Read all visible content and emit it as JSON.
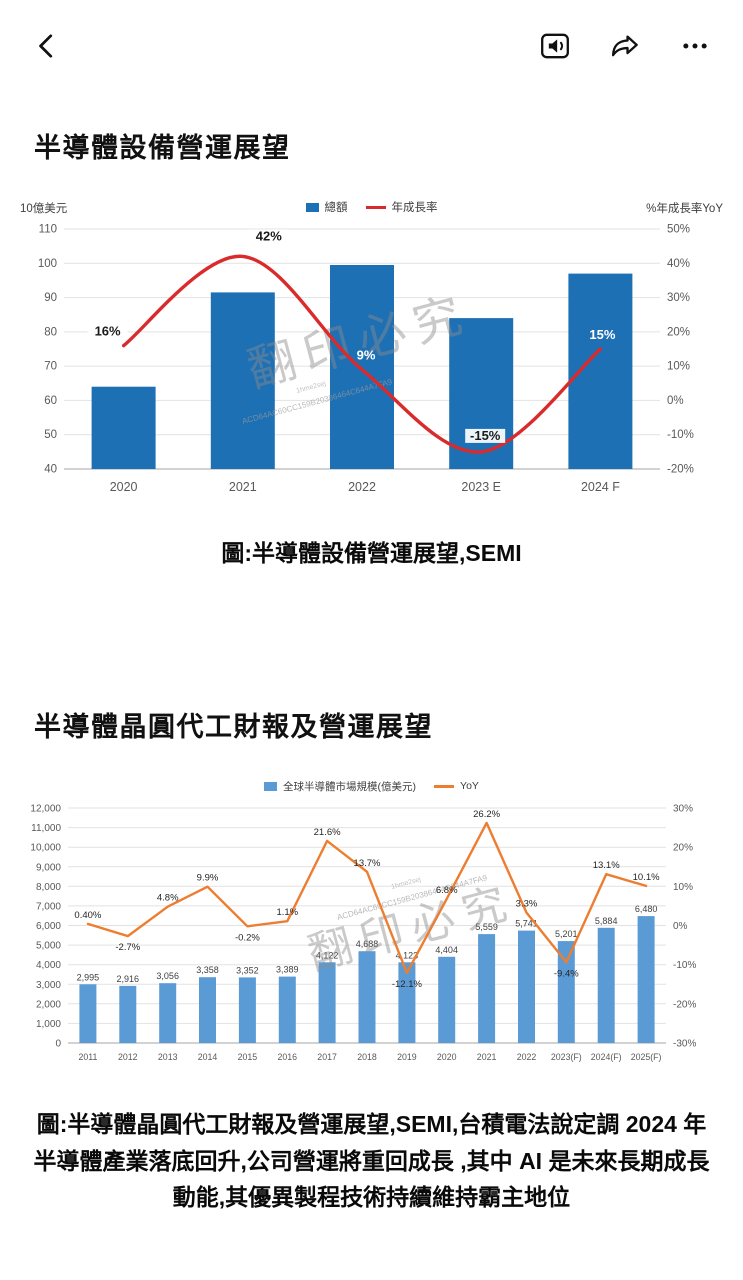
{
  "nav": {
    "icons": {
      "back": "chevron-left",
      "listen": "speaker-read-aloud",
      "share": "share-arrow",
      "more": "ellipsis"
    }
  },
  "article": {
    "heading1": "半導體設備營運展望",
    "caption1": "圖:半導體設備營運展望,SEMI",
    "heading2": "半導體晶圓代工財報及營運展望",
    "caption2": "圖:半導體晶圓代工財報及營運展望,SEMI,台積電法說定調 2024 年半導體產業落底回升,公司營運將重回成長 ,其中 AI 是未來長期成長動能,其優異製程技術持續維持霸主地位"
  },
  "watermark": {
    "main": "翻印必究",
    "code": "ACD64AC60CC159B20386464C644A7FA9",
    "code_small": "1hme2sej"
  },
  "chart_data": [
    {
      "type": "bar+line",
      "title": "半導體設備營運展望",
      "unit_left": "10億美元",
      "unit_right": "%年成長率YoY",
      "legend": [
        {
          "label": "總額",
          "color": "#1E70B5",
          "swatch": "bar"
        },
        {
          "label": "年成長率",
          "color": "#D92B2B",
          "swatch": "line"
        }
      ],
      "categories": [
        "2020",
        "2021",
        "2022",
        "2023 E",
        "2024 F"
      ],
      "bar_values": [
        64,
        91.5,
        99.5,
        84,
        97
      ],
      "line_values": [
        16,
        42,
        9,
        -15,
        15
      ],
      "line_labels": [
        "16%",
        "42%",
        "9%",
        "-15%",
        "15%"
      ],
      "ylim_left": [
        40,
        110
      ],
      "yticks_left": [
        "110",
        "100",
        "90",
        "80",
        "70",
        "60",
        "50",
        "40"
      ],
      "ylim_right": [
        -20,
        50
      ],
      "yticks_right": [
        "50%",
        "40%",
        "30%",
        "20%",
        "10%",
        "0%",
        "-10%",
        "-20%"
      ],
      "grid": true,
      "legend_position": "top"
    },
    {
      "type": "bar+line",
      "title": "半導體晶圓代工財報及營運展望",
      "legend": [
        {
          "label": "全球半導體市場規模(億美元)",
          "color": "#5B9BD5",
          "swatch": "bar"
        },
        {
          "label": "YoY",
          "color": "#ED7D31",
          "swatch": "line"
        }
      ],
      "categories": [
        "2011",
        "2012",
        "2013",
        "2014",
        "2015",
        "2016",
        "2017",
        "2018",
        "2019",
        "2020",
        "2021",
        "2022",
        "2023(F)",
        "2024(F)",
        "2025(F)"
      ],
      "bar_values": [
        2995,
        2916,
        3056,
        3358,
        3352,
        3389,
        4122,
        4688,
        4123,
        4404,
        5559,
        5741,
        5201,
        5884,
        6480
      ],
      "bar_labels": [
        "2,995",
        "2,916",
        "3,056",
        "3,358",
        "3,352",
        "3,389",
        "4,122",
        "4,688",
        "4,123",
        "4,404",
        "5,559",
        "5,741",
        "5,201",
        "5,884",
        "6,480"
      ],
      "line_values": [
        0.4,
        -2.7,
        4.8,
        9.9,
        -0.2,
        1.1,
        21.6,
        13.7,
        -12.1,
        6.8,
        26.2,
        3.3,
        -9.4,
        13.1,
        10.1
      ],
      "line_labels": [
        "0.40%",
        "-2.7%",
        "4.8%",
        "9.9%",
        "-0.2%",
        "1.1%",
        "21.6%",
        "13.7%",
        "-12.1%",
        "6.8%",
        "26.2%",
        "3.3%",
        "-9.4%",
        "13.1%",
        "10.1%"
      ],
      "ylim_left": [
        0,
        12000
      ],
      "yticks_left": [
        "12,000",
        "11,000",
        "10,000",
        "9,000",
        "8,000",
        "7,000",
        "6,000",
        "5,000",
        "4,000",
        "3,000",
        "2,000",
        "1,000",
        "0"
      ],
      "ylim_right": [
        -30,
        30
      ],
      "yticks_right": [
        "30%",
        "20%",
        "10%",
        "0%",
        "-10%",
        "-20%",
        "-30%"
      ],
      "grid": true,
      "legend_position": "top"
    }
  ]
}
